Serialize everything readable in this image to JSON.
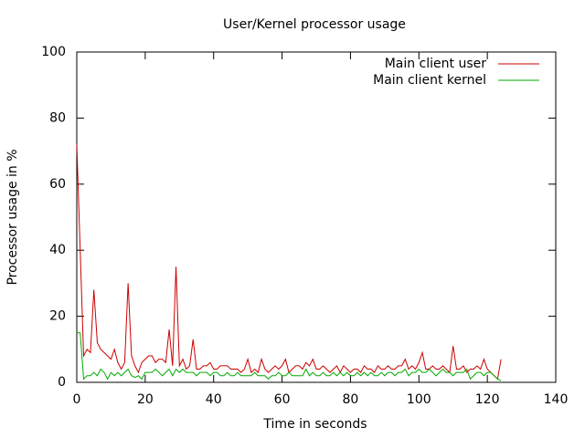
{
  "chart_data": {
    "type": "line",
    "title": "User/Kernel processor usage",
    "x_label": "Time in seconds",
    "y_label": "Processor usage in %",
    "x": [
      0,
      1,
      2,
      3,
      4,
      5,
      6,
      7,
      8,
      9,
      10,
      11,
      12,
      13,
      14,
      15,
      16,
      17,
      18,
      19,
      20,
      21,
      22,
      23,
      24,
      25,
      26,
      27,
      28,
      29,
      30,
      31,
      32,
      33,
      34,
      35,
      36,
      37,
      38,
      39,
      40,
      41,
      42,
      43,
      44,
      45,
      46,
      47,
      48,
      49,
      50,
      51,
      52,
      53,
      54,
      55,
      56,
      57,
      58,
      59,
      60,
      61,
      62,
      63,
      64,
      65,
      66,
      67,
      68,
      69,
      70,
      71,
      72,
      73,
      74,
      75,
      76,
      77,
      78,
      79,
      80,
      81,
      82,
      83,
      84,
      85,
      86,
      87,
      88,
      89,
      90,
      91,
      92,
      93,
      94,
      95,
      96,
      97,
      98,
      99,
      100,
      101,
      102,
      103,
      104,
      105,
      106,
      107,
      108,
      109,
      110,
      111,
      112,
      113,
      114,
      115,
      116,
      117,
      118,
      119,
      120,
      121,
      122,
      123,
      124
    ],
    "series": [
      {
        "name": "Main client user",
        "color": "#cc0000",
        "values": [
          72,
          40,
          8,
          10,
          9,
          28,
          12,
          10,
          9,
          8,
          7,
          10,
          6,
          4,
          6,
          30,
          8,
          5,
          3,
          6,
          7,
          8,
          8,
          6,
          7,
          7,
          6,
          16,
          5,
          35,
          5,
          7,
          4,
          5,
          13,
          4,
          4,
          5,
          5,
          6,
          4,
          4,
          5,
          5,
          5,
          4,
          4,
          4,
          3,
          4,
          7,
          3,
          4,
          3,
          7,
          4,
          3,
          4,
          5,
          4,
          5,
          7,
          3,
          4,
          5,
          5,
          4,
          6,
          5,
          7,
          4,
          4,
          5,
          4,
          3,
          4,
          5,
          3,
          5,
          4,
          3,
          4,
          4,
          3,
          5,
          4,
          4,
          3,
          5,
          4,
          4,
          5,
          4,
          4,
          5,
          5,
          7,
          4,
          5,
          4,
          6,
          9,
          4,
          4,
          5,
          4,
          4,
          5,
          4,
          3,
          11,
          4,
          4,
          5,
          3,
          4,
          4,
          5,
          4,
          7,
          4,
          3,
          2,
          1,
          7
        ]
      },
      {
        "name": "Main client kernel",
        "color": "#00aa00",
        "values": [
          15,
          15,
          1,
          2,
          2,
          3,
          2,
          4,
          3,
          1,
          3,
          2,
          3,
          2,
          3,
          4,
          2,
          1.5,
          2,
          1,
          3,
          3,
          3,
          4,
          3,
          2,
          3,
          4,
          2,
          4,
          3,
          4,
          3,
          3,
          3,
          2,
          3,
          3,
          3,
          2,
          3,
          3,
          2,
          2,
          3,
          2,
          2,
          3,
          2,
          2,
          2,
          2,
          3,
          2,
          2,
          2,
          1,
          2,
          2,
          3,
          2,
          2,
          3,
          2,
          2,
          2,
          2,
          4,
          2,
          3,
          2,
          2,
          3,
          2,
          2,
          3,
          2,
          3,
          2,
          3,
          2,
          2,
          3,
          2,
          3,
          2,
          3,
          2,
          2,
          3,
          2,
          3,
          3,
          2,
          3,
          3,
          4,
          2,
          3,
          3,
          4,
          3,
          3,
          4,
          3,
          2,
          3,
          4,
          3,
          3,
          2,
          3,
          3,
          3,
          4,
          1,
          2,
          3,
          3,
          2,
          3,
          3,
          2,
          1,
          0.5
        ]
      }
    ],
    "xlim": [
      0,
      140
    ],
    "xticks": [
      0,
      20,
      40,
      60,
      80,
      100,
      120,
      140
    ],
    "ylim": [
      0,
      100
    ],
    "yticks": [
      0,
      20,
      40,
      60,
      80,
      100
    ],
    "legend": "top-right"
  }
}
